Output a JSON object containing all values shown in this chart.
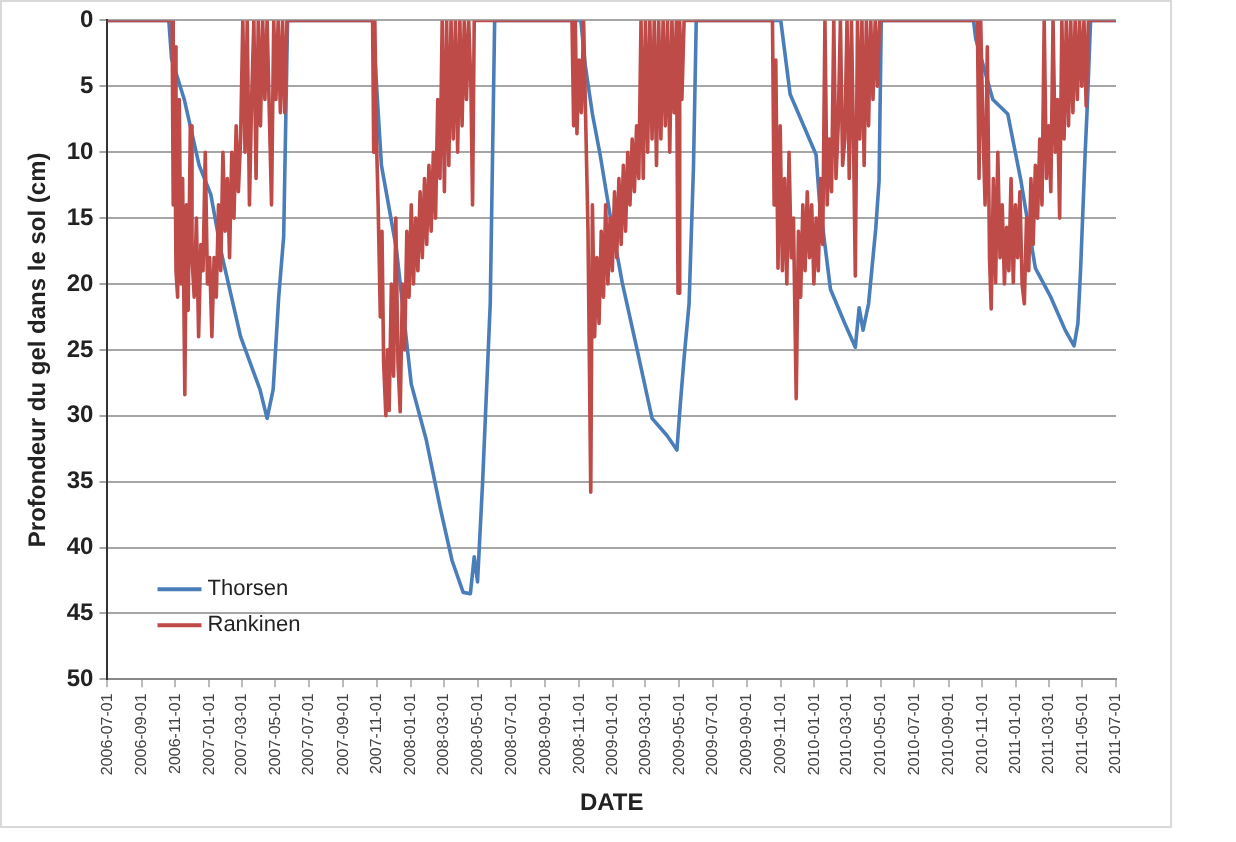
{
  "chart_data": {
    "type": "line",
    "xlabel": "DATE",
    "ylabel": "Profondeur du gel dans le sol (cm)",
    "xlim": [
      "2006-07-01",
      "2011-07-01"
    ],
    "xticks": [
      "2006-07-01",
      "2006-09-01",
      "2006-11-01",
      "2007-01-01",
      "2007-03-01",
      "2007-05-01",
      "2007-07-01",
      "2007-09-01",
      "2007-11-01",
      "2008-01-01",
      "2008-03-01",
      "2008-05-01",
      "2008-07-01",
      "2008-09-01",
      "2008-11-01",
      "2009-01-01",
      "2009-03-01",
      "2009-05-01",
      "2009-07-01",
      "2009-09-01",
      "2009-11-01",
      "2010-01-01",
      "2010-03-01",
      "2010-05-01",
      "2010-07-01",
      "2010-09-01",
      "2010-11-01",
      "2011-01-01",
      "2011-03-01",
      "2011-05-01",
      "2011-07-01"
    ],
    "ylim": [
      50,
      0
    ],
    "yticks": [
      0,
      5,
      10,
      15,
      20,
      25,
      30,
      35,
      40,
      45,
      50
    ],
    "grid": "y",
    "legend": "bottom left",
    "marker": "none",
    "line_style": "solid",
    "series": [
      {
        "name": "Thorsen",
        "color": "#4a7ebb",
        "x": [
          "2006-07-01",
          "2006-10-20",
          "2006-10-25",
          "2006-11-17",
          "2006-12-14",
          "2007-01-04",
          "2007-01-24",
          "2007-02-27",
          "2007-04-03",
          "2007-04-16",
          "2007-04-27",
          "2007-05-07",
          "2007-05-16",
          "2007-05-23",
          "2007-10-24",
          "2007-11-09",
          "2007-12-06",
          "2008-01-02",
          "2008-01-29",
          "2008-02-25",
          "2008-03-16",
          "2008-04-05",
          "2008-04-18",
          "2008-04-25",
          "2008-05-01",
          "2008-05-10",
          "2008-05-24",
          "2008-06-01",
          "2008-11-04",
          "2008-11-12",
          "2008-11-25",
          "2008-12-09",
          "2008-12-29",
          "2009-01-18",
          "2009-02-14",
          "2009-03-13",
          "2009-04-09",
          "2009-04-27",
          "2009-05-03",
          "2009-05-10",
          "2009-05-19",
          "2009-05-27",
          "2009-06-01",
          "2009-11-01",
          "2009-11-18",
          "2010-01-04",
          "2010-01-10",
          "2010-01-16",
          "2010-01-30",
          "2010-02-25",
          "2010-03-16",
          "2010-03-23",
          "2010-03-30",
          "2010-04-09",
          "2010-04-22",
          "2010-04-28",
          "2010-05-02",
          "2010-10-16",
          "2010-10-20",
          "2010-11-20",
          "2010-12-17",
          "2011-01-10",
          "2011-02-05",
          "2011-03-05",
          "2011-03-31",
          "2011-04-16",
          "2011-04-23",
          "2011-04-28",
          "2011-05-06",
          "2011-05-10",
          "2011-05-16",
          "2011-07-01"
        ],
        "values": [
          0,
          0,
          2.9,
          6,
          11,
          13.2,
          17.8,
          24,
          28,
          30.2,
          28,
          21,
          16.4,
          0,
          0,
          11,
          17.3,
          27.6,
          31.8,
          37.3,
          41,
          43.4,
          43.5,
          40.7,
          42.6,
          35.2,
          21.5,
          0,
          0,
          3.4,
          7.1,
          10.2,
          15.3,
          19.9,
          25,
          30.2,
          31.5,
          32.6,
          29.2,
          25.6,
          21.5,
          11.1,
          0,
          0,
          5.6,
          10.2,
          13.7,
          15.7,
          20.4,
          23,
          24.8,
          21.8,
          23.5,
          21.5,
          15.8,
          12.2,
          0,
          0,
          1.4,
          6,
          7.1,
          12.2,
          18.8,
          21,
          23.5,
          24.7,
          23,
          18.8,
          10.2,
          6.5,
          0,
          0
        ]
      },
      {
        "name": "Rankinen",
        "color": "#be4b48",
        "x": [
          "2006-07-01",
          "2006-10-26",
          "2006-10-28",
          "2006-10-30",
          "2006-11-02",
          "2006-11-05",
          "2006-11-08",
          "2006-11-11",
          "2006-11-14",
          "2006-11-18",
          "2006-11-21",
          "2006-11-24",
          "2006-11-28",
          "2006-12-01",
          "2006-12-05",
          "2006-12-09",
          "2006-12-13",
          "2006-12-17",
          "2006-12-21",
          "2006-12-25",
          "2006-12-29",
          "2007-01-02",
          "2007-01-06",
          "2007-01-10",
          "2007-01-14",
          "2007-01-18",
          "2007-01-22",
          "2007-01-26",
          "2007-01-30",
          "2007-02-03",
          "2007-02-07",
          "2007-02-11",
          "2007-02-15",
          "2007-02-19",
          "2007-02-23",
          "2007-02-27",
          "2007-03-03",
          "2007-03-07",
          "2007-03-11",
          "2007-03-15",
          "2007-03-19",
          "2007-03-23",
          "2007-03-27",
          "2007-03-31",
          "2007-04-04",
          "2007-04-08",
          "2007-04-12",
          "2007-04-16",
          "2007-04-20",
          "2007-04-24",
          "2007-04-28",
          "2007-05-02",
          "2007-05-06",
          "2007-05-10",
          "2007-05-14",
          "2007-05-18",
          "2007-05-22",
          "2007-10-24",
          "2007-10-26",
          "2007-10-28",
          "2007-10-31",
          "2007-11-03",
          "2007-11-07",
          "2007-11-10",
          "2007-11-13",
          "2007-11-17",
          "2007-11-20",
          "2007-11-23",
          "2007-11-27",
          "2007-12-01",
          "2007-12-05",
          "2007-12-09",
          "2007-12-13",
          "2007-12-17",
          "2007-12-21",
          "2007-12-25",
          "2007-12-29",
          "2008-01-02",
          "2008-01-06",
          "2008-01-10",
          "2008-01-14",
          "2008-01-18",
          "2008-01-22",
          "2008-01-26",
          "2008-01-30",
          "2008-02-03",
          "2008-02-07",
          "2008-02-11",
          "2008-02-15",
          "2008-02-19",
          "2008-02-23",
          "2008-02-27",
          "2008-03-02",
          "2008-03-06",
          "2008-03-10",
          "2008-03-14",
          "2008-03-18",
          "2008-03-22",
          "2008-03-26",
          "2008-03-30",
          "2008-04-03",
          "2008-04-07",
          "2008-04-11",
          "2008-04-15",
          "2008-04-19",
          "2008-04-22",
          "2008-04-25",
          "2008-10-19",
          "2008-10-22",
          "2008-10-25",
          "2008-10-28",
          "2008-11-01",
          "2008-11-05",
          "2008-11-09",
          "2008-11-13",
          "2008-11-17",
          "2008-11-22",
          "2008-11-25",
          "2008-11-29",
          "2008-12-03",
          "2008-12-07",
          "2008-12-11",
          "2008-12-15",
          "2008-12-19",
          "2008-12-23",
          "2008-12-27",
          "2008-12-31",
          "2009-01-04",
          "2009-01-08",
          "2009-01-12",
          "2009-01-16",
          "2009-01-20",
          "2009-01-24",
          "2009-01-28",
          "2009-02-01",
          "2009-02-05",
          "2009-02-09",
          "2009-02-13",
          "2009-02-17",
          "2009-02-21",
          "2009-02-25",
          "2009-03-01",
          "2009-03-05",
          "2009-03-09",
          "2009-03-13",
          "2009-03-17",
          "2009-03-21",
          "2009-03-25",
          "2009-03-29",
          "2009-04-02",
          "2009-04-06",
          "2009-04-10",
          "2009-04-14",
          "2009-04-18",
          "2009-04-22",
          "2009-04-26",
          "2009-04-29",
          "2009-05-02",
          "2009-05-06",
          "2009-05-10",
          "2009-10-17",
          "2009-10-20",
          "2009-10-23",
          "2009-10-27",
          "2009-10-31",
          "2009-11-04",
          "2009-11-08",
          "2009-11-12",
          "2009-11-16",
          "2009-11-20",
          "2009-11-24",
          "2009-11-29",
          "2009-12-03",
          "2009-12-07",
          "2009-12-11",
          "2009-12-15",
          "2009-12-19",
          "2009-12-23",
          "2009-12-27",
          "2009-12-31",
          "2010-01-04",
          "2010-01-08",
          "2010-01-12",
          "2010-01-16",
          "2010-01-20",
          "2010-01-24",
          "2010-01-28",
          "2010-02-01",
          "2010-02-05",
          "2010-02-09",
          "2010-02-13",
          "2010-02-17",
          "2010-02-21",
          "2010-02-25",
          "2010-03-01",
          "2010-03-05",
          "2010-03-09",
          "2010-03-13",
          "2010-03-16",
          "2010-03-20",
          "2010-03-24",
          "2010-03-28",
          "2010-04-01",
          "2010-04-05",
          "2010-04-09",
          "2010-04-13",
          "2010-04-17",
          "2010-04-21",
          "2010-04-25",
          "2010-04-29",
          "2010-10-23",
          "2010-10-26",
          "2010-10-29",
          "2010-11-02",
          "2010-11-06",
          "2010-11-10",
          "2010-11-14",
          "2010-11-17",
          "2010-11-21",
          "2010-11-25",
          "2010-11-29",
          "2010-12-03",
          "2010-12-07",
          "2010-12-11",
          "2010-12-15",
          "2010-12-19",
          "2010-12-23",
          "2010-12-27",
          "2010-12-31",
          "2011-01-04",
          "2011-01-08",
          "2011-01-12",
          "2011-01-16",
          "2011-01-20",
          "2011-01-24",
          "2011-01-28",
          "2011-02-01",
          "2011-02-05",
          "2011-02-09",
          "2011-02-13",
          "2011-02-17",
          "2011-02-21",
          "2011-02-25",
          "2011-03-01",
          "2011-03-05",
          "2011-03-09",
          "2011-03-13",
          "2011-03-17",
          "2011-03-21",
          "2011-03-25",
          "2011-03-29",
          "2011-04-02",
          "2011-04-06",
          "2011-04-10",
          "2011-04-14",
          "2011-04-18",
          "2011-04-22",
          "2011-04-26",
          "2011-04-30",
          "2011-05-04",
          "2011-05-08",
          "2011-05-12",
          "2011-05-16",
          "2011-07-01"
        ],
        "values": [
          0,
          0,
          14,
          2,
          19,
          21,
          6,
          20,
          12,
          28.4,
          14,
          22,
          8,
          18,
          21,
          15,
          24,
          17,
          19,
          10,
          20,
          18,
          24,
          18,
          21,
          14,
          19,
          10,
          16,
          12,
          18,
          10,
          15,
          8,
          13,
          9,
          0,
          10,
          0,
          14,
          6,
          0,
          12,
          0,
          8,
          0,
          6,
          0,
          7,
          14,
          0,
          6,
          0,
          7,
          0,
          7,
          0,
          0,
          10,
          0,
          9,
          14,
          22.5,
          16,
          26,
          30,
          25,
          29.6,
          20,
          27,
          15,
          26,
          29.7,
          20,
          25,
          16,
          21,
          14,
          20,
          15,
          19,
          13,
          18,
          12,
          17,
          11,
          16,
          10,
          15,
          6,
          12,
          0,
          13,
          0,
          11,
          0,
          9,
          0,
          10,
          0,
          8,
          0,
          6,
          0,
          5,
          14,
          0,
          0,
          8,
          0,
          8.6,
          3,
          7,
          0,
          8,
          16,
          35.8,
          14,
          24,
          18,
          23,
          16,
          21,
          14,
          20,
          15,
          19,
          13,
          18,
          12,
          17,
          11,
          16,
          10,
          14,
          9,
          13,
          8,
          12,
          0,
          12,
          0,
          10,
          0,
          9,
          0,
          11,
          0,
          9,
          0,
          8,
          0,
          10,
          0,
          7,
          0,
          20.7,
          0,
          6,
          0,
          0,
          14,
          3,
          18.8,
          8,
          19,
          12,
          20,
          10,
          18,
          15,
          28.7,
          16,
          21,
          14,
          19,
          13,
          18,
          14,
          20,
          15,
          19,
          12,
          17,
          0,
          14,
          9,
          13,
          0,
          12,
          8,
          0,
          11,
          9,
          0,
          12,
          0,
          10,
          19.4,
          0,
          9,
          0,
          11,
          0,
          8,
          0,
          6,
          0,
          5,
          0,
          0,
          12,
          0,
          8,
          14,
          2,
          18,
          21.9,
          12,
          19.9,
          10,
          18,
          14,
          20,
          15.7,
          19,
          12,
          19.9,
          14,
          18,
          13,
          20,
          21.5,
          15,
          19,
          12,
          17,
          11,
          15,
          9,
          14,
          0,
          12,
          8,
          13,
          0,
          10,
          6,
          15,
          0,
          9,
          0,
          8,
          0,
          7,
          0,
          6,
          0,
          5,
          0,
          6.5,
          0,
          0,
          0
        ]
      }
    ]
  }
}
